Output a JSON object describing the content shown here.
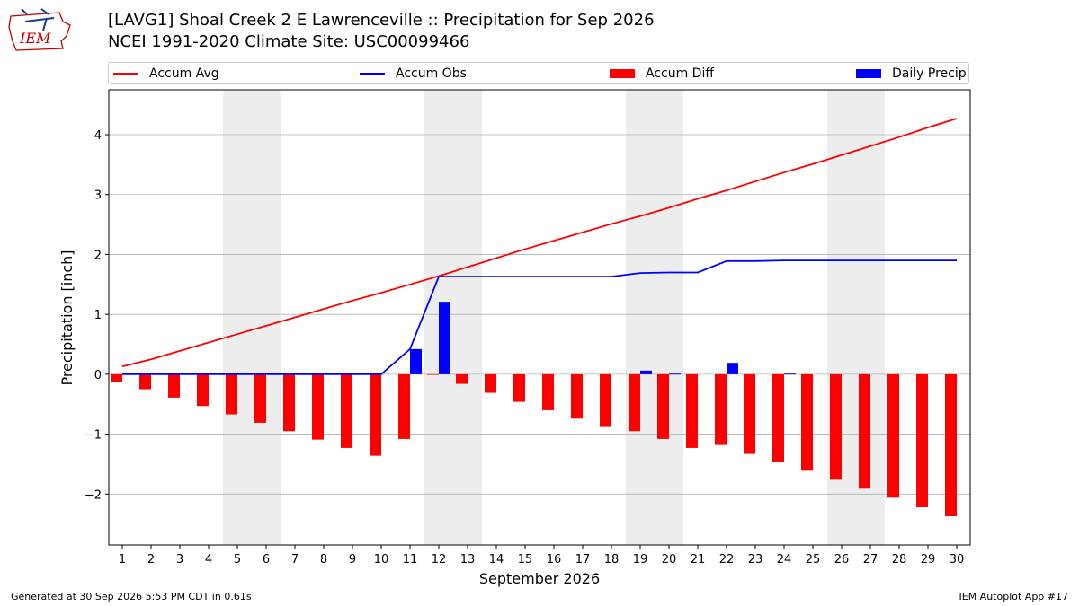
{
  "header": {
    "logo_text": "IEM",
    "title_line1": "[LAVG1] Shoal Creek 2 E Lawrenceville :: Precipitation for Sep 2026",
    "title_line2": "NCEI 1991-2020 Climate Site: USC00099466"
  },
  "footer": {
    "generated": "Generated at 30 Sep 2026 5:53 PM CDT in 0.61s",
    "app": "IEM Autoplot App #17"
  },
  "colors": {
    "accum_avg": "#ff0000",
    "accum_obs": "#0000ff",
    "accum_diff": "#ff0000",
    "daily_precip": "#0000ff",
    "weekend_shade": "#ededed",
    "grid": "#b0b0b0"
  },
  "chart_data": {
    "type": "bar",
    "xlabel": "September 2026",
    "ylabel": "Precipitation [inch]",
    "ylim": [
      -2.85,
      4.75
    ],
    "yticks": [
      -2,
      -1,
      0,
      1,
      2,
      3,
      4
    ],
    "ytick_labels": [
      "−2",
      "−1",
      "0",
      "1",
      "2",
      "3",
      "4"
    ],
    "grid": true,
    "legend_position": "top",
    "legend": [
      "Accum Avg",
      "Accum Obs",
      "Accum Diff",
      "Daily Precip"
    ],
    "weekend_shaded_days": [
      5,
      6,
      12,
      13,
      19,
      20,
      26,
      27
    ],
    "days": [
      1,
      2,
      3,
      4,
      5,
      6,
      7,
      8,
      9,
      10,
      11,
      12,
      13,
      14,
      15,
      16,
      17,
      18,
      19,
      20,
      21,
      22,
      23,
      24,
      25,
      26,
      27,
      28,
      29,
      30
    ],
    "series": [
      {
        "name": "Accum Avg",
        "kind": "line",
        "values": [
          0.13,
          0.25,
          0.39,
          0.53,
          0.67,
          0.81,
          0.95,
          1.09,
          1.23,
          1.36,
          1.5,
          1.64,
          1.79,
          1.94,
          2.09,
          2.23,
          2.37,
          2.51,
          2.64,
          2.78,
          2.93,
          3.07,
          3.22,
          3.37,
          3.51,
          3.66,
          3.81,
          3.96,
          4.12,
          4.27
        ]
      },
      {
        "name": "Accum Obs",
        "kind": "line",
        "values": [
          0.0,
          0.0,
          0.0,
          0.0,
          0.0,
          0.0,
          0.0,
          0.0,
          0.0,
          0.0,
          0.42,
          1.63,
          1.63,
          1.63,
          1.63,
          1.63,
          1.63,
          1.63,
          1.69,
          1.7,
          1.7,
          1.89,
          1.89,
          1.9,
          1.9,
          1.9,
          1.9,
          1.9,
          1.9,
          1.9
        ]
      },
      {
        "name": "Accum Diff",
        "kind": "bar",
        "values": [
          -0.13,
          -0.25,
          -0.39,
          -0.53,
          -0.67,
          -0.81,
          -0.95,
          -1.09,
          -1.23,
          -1.36,
          -1.08,
          -0.01,
          -0.16,
          -0.31,
          -0.46,
          -0.6,
          -0.74,
          -0.88,
          -0.95,
          -1.08,
          -1.23,
          -1.18,
          -1.33,
          -1.47,
          -1.61,
          -1.76,
          -1.91,
          -2.06,
          -2.22,
          -2.37
        ]
      },
      {
        "name": "Daily Precip",
        "kind": "bar",
        "values": [
          0,
          0,
          0,
          0,
          0,
          0,
          0,
          0,
          0,
          0,
          0.42,
          1.21,
          0,
          0,
          0,
          0,
          0,
          0,
          0.06,
          0.01,
          0,
          0.19,
          0,
          0.01,
          0,
          0,
          0,
          0,
          0,
          0
        ]
      }
    ]
  }
}
